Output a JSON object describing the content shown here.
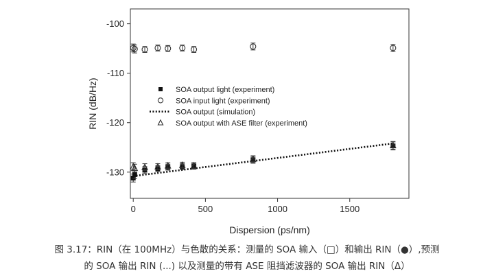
{
  "chart_data": {
    "type": "scatter",
    "xlabel": "Dispersion (ps/nm)",
    "ylabel": "RIN (dB/Hz)",
    "xlim": [
      -20,
      1910
    ],
    "ylim": [
      -135.3,
      -97
    ],
    "x_ticks": [
      0,
      500,
      1000,
      1500
    ],
    "x_tick_labels": [
      "0",
      "500",
      "1000",
      "1500"
    ],
    "y_ticks": [
      -100,
      -110,
      -120,
      -130
    ],
    "y_tick_labels": [
      "-100",
      "-110",
      "-120",
      "-130"
    ],
    "grid": false,
    "legend_position": "center-left",
    "series": [
      {
        "name": "SOA output light (experiment)",
        "marker": "filled-square",
        "x": [
          0,
          10,
          80,
          170,
          240,
          340,
          420,
          830,
          1800
        ],
        "y": [
          -131.2,
          -130.5,
          -129.6,
          -129.3,
          -129.0,
          -128.9,
          -128.8,
          -127.5,
          -124.7
        ],
        "err": [
          0.8,
          0.8,
          0.7,
          0.6,
          0.6,
          0.6,
          0.6,
          0.7,
          0.8
        ]
      },
      {
        "name": "SOA input  light (experiment)",
        "marker": "open-circle",
        "x": [
          0,
          10,
          80,
          170,
          240,
          340,
          420,
          830,
          1800
        ],
        "y": [
          -104.9,
          -105.1,
          -105.2,
          -104.9,
          -105.0,
          -104.9,
          -105.2,
          -104.6,
          -104.9
        ],
        "err": [
          0.8,
          0.8,
          0.6,
          0.6,
          0.6,
          0.6,
          0.6,
          0.7,
          0.7
        ]
      },
      {
        "name": "SOA output (simulation)",
        "marker": "dotted-line",
        "x": [
          0,
          1800
        ],
        "y": [
          -130.8,
          -124.2
        ]
      },
      {
        "name": "SOA output with ASE filter (experiment)",
        "marker": "open-triangle",
        "x": [
          0,
          10,
          80,
          170,
          240,
          340,
          420,
          830,
          1800
        ],
        "y": [
          -128.9,
          -129.2,
          -129.0,
          -128.9,
          -128.7,
          -128.6,
          -128.7,
          -127.4,
          -124.6
        ],
        "err": [
          0.8,
          0.8,
          0.7,
          0.6,
          0.6,
          0.6,
          0.6,
          0.7,
          0.8
        ]
      }
    ]
  },
  "caption": {
    "line1": "图 3.17：RIN（在 100MHz）与色散的关系：测量的 SOA 输入（□）和输出 RIN（●）,预测",
    "line2": "的 SOA 输出 RIN (...) 以及测量的带有 ASE 阻挡滤波器的 SOA 输出 RIN（Δ）"
  }
}
